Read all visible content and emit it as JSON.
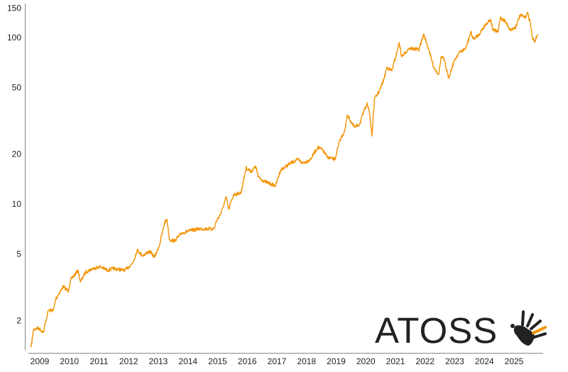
{
  "chart_data": {
    "type": "line",
    "title": "",
    "xlabel": "",
    "ylabel": "",
    "y_scale": "log",
    "ylim": [
      1.3,
      160
    ],
    "xlim": [
      "2008-07",
      "2025-12"
    ],
    "grid": false,
    "line_color": "#f39200",
    "y_ticks": [
      "150",
      "100",
      "50",
      "20",
      "10",
      "5",
      "2"
    ],
    "x_ticks": [
      "2009",
      "2010",
      "2011",
      "2012",
      "2013",
      "2014",
      "2015",
      "2016",
      "2017",
      "2018",
      "2019",
      "2020",
      "2021",
      "2022",
      "2023",
      "2024",
      "2025"
    ],
    "series": [
      {
        "points": [
          [
            "2008-09",
            1.38
          ],
          [
            "2008-10",
            1.77
          ],
          [
            "2008-12",
            1.8
          ],
          [
            "2009-02",
            1.7
          ],
          [
            "2009-03",
            2.0
          ],
          [
            "2009-04",
            2.3
          ],
          [
            "2009-06",
            2.3
          ],
          [
            "2009-07",
            2.7
          ],
          [
            "2009-10",
            3.2
          ],
          [
            "2009-12",
            3.0
          ],
          [
            "2010-01",
            3.5
          ],
          [
            "2010-04",
            4.0
          ],
          [
            "2010-05",
            3.4
          ],
          [
            "2010-07",
            3.9
          ],
          [
            "2010-10",
            4.1
          ],
          [
            "2011-01",
            4.2
          ],
          [
            "2011-04",
            4.0
          ],
          [
            "2011-06",
            4.1
          ],
          [
            "2011-11",
            4.0
          ],
          [
            "2012-02",
            4.4
          ],
          [
            "2012-04",
            5.3
          ],
          [
            "2012-06",
            4.9
          ],
          [
            "2012-09",
            5.2
          ],
          [
            "2012-11",
            4.8
          ],
          [
            "2013-01",
            5.7
          ],
          [
            "2013-03",
            7.7
          ],
          [
            "2013-04",
            8.1
          ],
          [
            "2013-05",
            6.1
          ],
          [
            "2013-07",
            6.0
          ],
          [
            "2013-10",
            6.7
          ],
          [
            "2014-01",
            6.9
          ],
          [
            "2014-05",
            7.1
          ],
          [
            "2014-11",
            7.1
          ],
          [
            "2014-12",
            7.9
          ],
          [
            "2015-02",
            8.9
          ],
          [
            "2015-04",
            11.0
          ],
          [
            "2015-05",
            9.3
          ],
          [
            "2015-07",
            11.4
          ],
          [
            "2015-10",
            11.7
          ],
          [
            "2015-11",
            13.8
          ],
          [
            "2015-12",
            16.5
          ],
          [
            "2016-02",
            15.7
          ],
          [
            "2016-04",
            16.8
          ],
          [
            "2016-05",
            14.5
          ],
          [
            "2016-07",
            13.8
          ],
          [
            "2016-10",
            13.2
          ],
          [
            "2016-12",
            12.9
          ],
          [
            "2017-02",
            16.0
          ],
          [
            "2017-06",
            17.6
          ],
          [
            "2017-09",
            18.5
          ],
          [
            "2017-11",
            17.6
          ],
          [
            "2018-02",
            18.5
          ],
          [
            "2018-05",
            21.9
          ],
          [
            "2018-07",
            21.1
          ],
          [
            "2018-09",
            19.1
          ],
          [
            "2018-12",
            18.5
          ],
          [
            "2019-02",
            24.2
          ],
          [
            "2019-04",
            27.5
          ],
          [
            "2019-05",
            34.4
          ],
          [
            "2019-07",
            30.3
          ],
          [
            "2019-08",
            28.8
          ],
          [
            "2019-10",
            30.3
          ],
          [
            "2019-12",
            36.8
          ],
          [
            "2020-01",
            40.6
          ],
          [
            "2020-02",
            35.0
          ],
          [
            "2020-03",
            25.6
          ],
          [
            "2020-04",
            42.6
          ],
          [
            "2020-06",
            47.9
          ],
          [
            "2020-08",
            57.2
          ],
          [
            "2020-09",
            66.3
          ],
          [
            "2020-11",
            63.1
          ],
          [
            "2021-01",
            80.6
          ],
          [
            "2021-02",
            93.4
          ],
          [
            "2021-03",
            76.7
          ],
          [
            "2021-06",
            86.3
          ],
          [
            "2021-10",
            84.6
          ],
          [
            "2021-12",
            105
          ],
          [
            "2022-01",
            93.4
          ],
          [
            "2022-02",
            84.6
          ],
          [
            "2022-04",
            66.3
          ],
          [
            "2022-06",
            60.1
          ],
          [
            "2022-07",
            76.7
          ],
          [
            "2022-08",
            75.2
          ],
          [
            "2022-10",
            57.2
          ],
          [
            "2022-12",
            70.8
          ],
          [
            "2023-02",
            80.6
          ],
          [
            "2023-05",
            86.3
          ],
          [
            "2023-07",
            108
          ],
          [
            "2023-08",
            98
          ],
          [
            "2023-10",
            103
          ],
          [
            "2024-01",
            120
          ],
          [
            "2024-03",
            129
          ],
          [
            "2024-04",
            111
          ],
          [
            "2024-06",
            108
          ],
          [
            "2024-07",
            132
          ],
          [
            "2024-09",
            125
          ],
          [
            "2024-11",
            111
          ],
          [
            "2025-01",
            115
          ],
          [
            "2025-03",
            136
          ],
          [
            "2025-05",
            132
          ],
          [
            "2025-06",
            141
          ],
          [
            "2025-07",
            125
          ],
          [
            "2025-08",
            98
          ],
          [
            "2025-09",
            95
          ],
          [
            "2025-10",
            105
          ]
        ]
      }
    ]
  },
  "logo": {
    "text": "ATOSS",
    "text_color": "#222222",
    "accent_color": "#f39200"
  }
}
